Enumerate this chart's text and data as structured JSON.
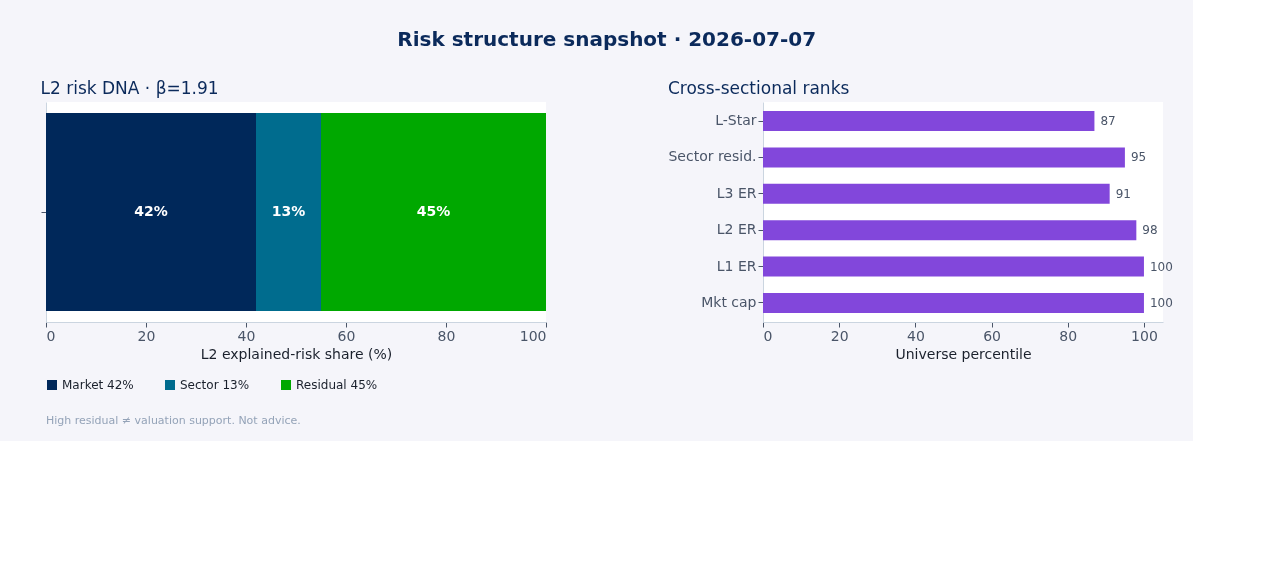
{
  "chart_data": [
    {
      "type": "bar",
      "title": "Risk structure snapshot · 2026-07-07",
      "subtitle": "L2 risk DNA · β=1.91",
      "orientation": "horizontal",
      "stacked": true,
      "categories": [
        null
      ],
      "series": [
        {
          "name": "Market 42%",
          "color": "#00285a",
          "values": [
            42
          ],
          "value_labels": [
            "42%"
          ]
        },
        {
          "name": "Sector 13%",
          "color": "#006c8e",
          "values": [
            13
          ],
          "value_labels": [
            "13%"
          ]
        },
        {
          "name": "Residual 45%",
          "color": "#00a800",
          "values": [
            45
          ],
          "value_labels": [
            "45%"
          ]
        }
      ],
      "xlabel": "L2 explained-risk share (%)",
      "xlim": [
        0,
        100
      ],
      "xticks": [
        0,
        20,
        40,
        60,
        80,
        100
      ],
      "legend": "bottom",
      "tick_labels": "x",
      "grid": false,
      "annotations": [
        "High residual ≠ valuation support. Not advice."
      ]
    },
    {
      "type": "bar",
      "title": "Cross-sectional ranks",
      "orientation": "horizontal",
      "categories": [
        "L-Star",
        "Sector resid.",
        "L3 ER",
        "L2 ER",
        "L1 ER",
        "Mkt cap"
      ],
      "values": [
        87,
        95,
        91,
        98,
        100,
        100
      ],
      "color": "#8247db",
      "data_labels": true,
      "xlabel": "Universe percentile",
      "xlim": [
        0,
        105
      ],
      "xticks": [
        0,
        20,
        40,
        60,
        80,
        100
      ],
      "grid": false
    }
  ]
}
